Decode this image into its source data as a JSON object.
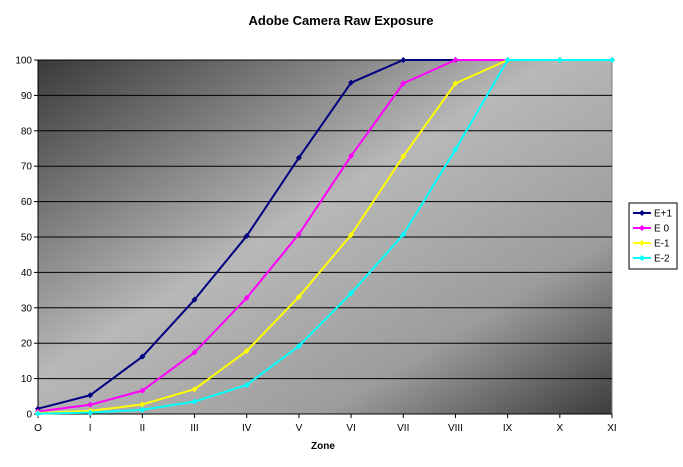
{
  "chart_data": {
    "type": "line",
    "title": "Adobe Camera Raw Exposure",
    "xlabel": "Zone",
    "ylabel": "",
    "categories": [
      "O",
      "I",
      "II",
      "III",
      "IV",
      "V",
      "VI",
      "VII",
      "VIII",
      "IX",
      "X",
      "XI"
    ],
    "ylim": [
      0,
      100
    ],
    "yticks": [
      0,
      10,
      20,
      30,
      40,
      50,
      60,
      70,
      80,
      90,
      100
    ],
    "grid": true,
    "legend_position": "right",
    "series": [
      {
        "name": "E+1",
        "color": "#000080",
        "values": [
          1.5,
          5.3,
          16.2,
          32.3,
          50.3,
          72.4,
          93.6,
          100,
          100,
          100,
          100,
          100
        ]
      },
      {
        "name": "E 0",
        "color": "#ff00ff",
        "values": [
          0.7,
          2.6,
          6.6,
          17.4,
          32.8,
          50.8,
          72.9,
          93.4,
          100,
          100,
          100,
          100
        ]
      },
      {
        "name": "E-1",
        "color": "#ffff00",
        "values": [
          0.3,
          0.9,
          2.7,
          7.0,
          17.8,
          33.1,
          50.6,
          72.8,
          93.4,
          100,
          100,
          100
        ]
      },
      {
        "name": "E-2",
        "color": "#00ffff",
        "values": [
          0.1,
          0.4,
          1.2,
          3.5,
          8.2,
          19.2,
          34.1,
          50.7,
          74.7,
          100,
          100,
          100
        ]
      }
    ]
  }
}
